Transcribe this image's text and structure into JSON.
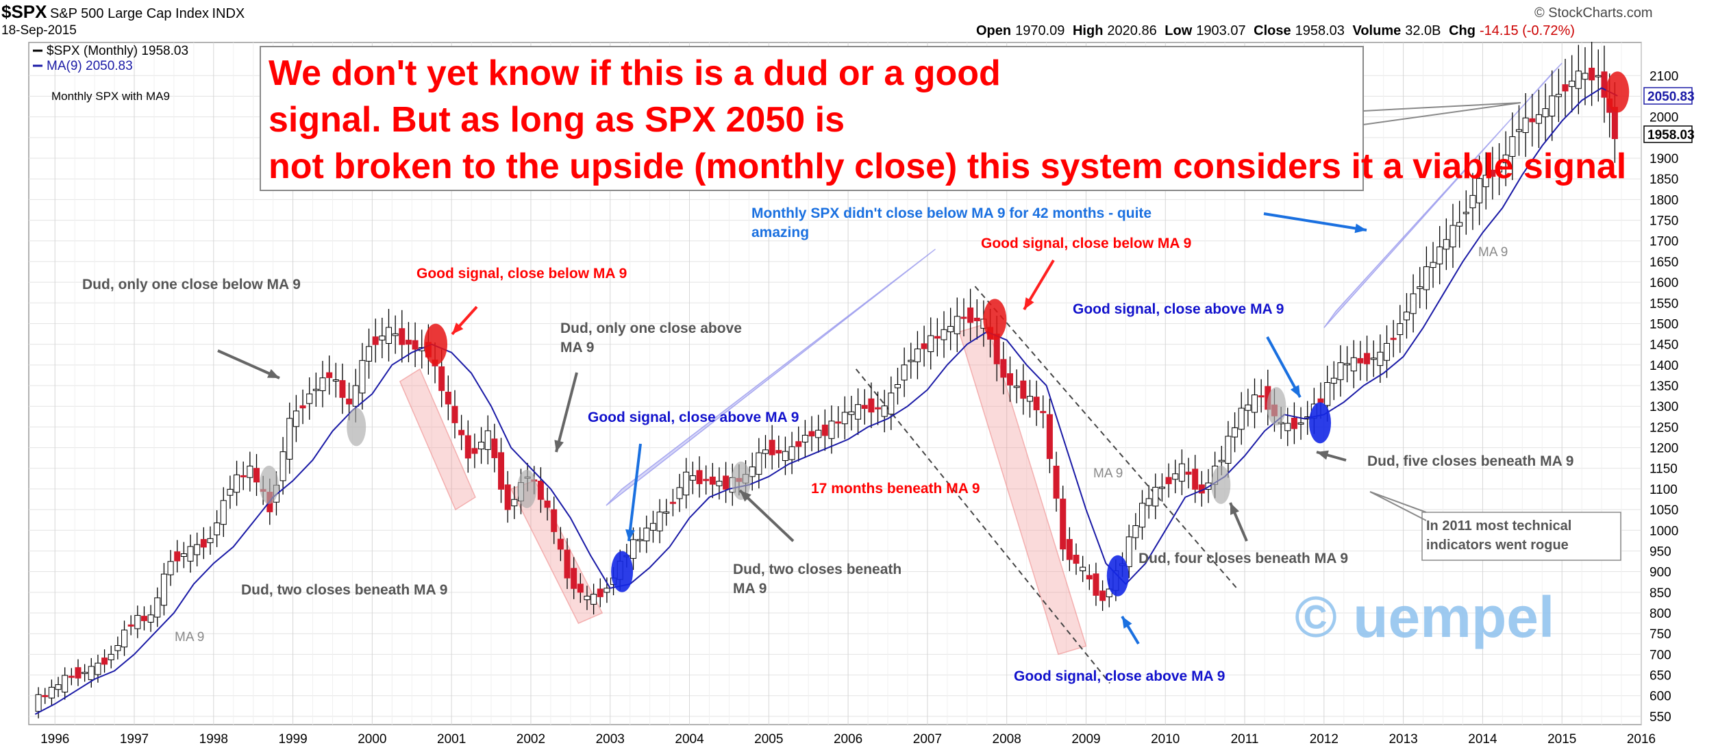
{
  "header": {
    "symbol": "$SPX",
    "name": "S&P 500 Large Cap Index",
    "exchange": "INDX",
    "date": "18-Sep-2015",
    "source": "© StockCharts.com",
    "stats": {
      "open_label": "Open",
      "open": "1970.09",
      "high_label": "High",
      "high": "2020.86",
      "low_label": "Low",
      "low": "1903.07",
      "close_label": "Close",
      "close": "1958.03",
      "volume_label": "Volume",
      "volume": "32.0B",
      "chg_label": "Chg",
      "chg": "-14.15 (-0.72%)"
    }
  },
  "chart_data": {
    "type": "line",
    "title": "Monthly SPX with MA9",
    "legend": [
      {
        "name": "$SPX (Monthly) 1958.03",
        "color": "#000000"
      },
      {
        "name": "MA(9) 2050.83",
        "color": "#1a1aa6"
      }
    ],
    "legend_placement": "top-left",
    "x_ticks": [
      "1996",
      "1997",
      "1998",
      "1999",
      "2000",
      "2001",
      "2002",
      "2003",
      "2004",
      "2005",
      "2006",
      "2007",
      "2008",
      "2009",
      "2010",
      "2011",
      "2012",
      "2013",
      "2014",
      "2015",
      "2016"
    ],
    "y_ticks": [
      550,
      600,
      650,
      700,
      750,
      800,
      850,
      900,
      950,
      1000,
      1050,
      1100,
      1150,
      1200,
      1250,
      1300,
      1350,
      1400,
      1450,
      1500,
      1550,
      1600,
      1650,
      1700,
      1750,
      1800,
      1850,
      1900,
      1950,
      2000,
      2050,
      2100
    ],
    "ylim": [
      530,
      2180
    ],
    "xlim": [
      1995.67,
      2016.0
    ],
    "grid": true,
    "price_tags": [
      {
        "label": "2050.83",
        "value": 2050.83,
        "color": "#1a1aa6"
      },
      {
        "label": "1958.03",
        "value": 1958.03,
        "color": "#000000"
      }
    ],
    "series": [
      {
        "name": "$SPX (Monthly)",
        "type": "candlestick",
        "x": [
          1995.75,
          1996.0,
          1996.25,
          1996.5,
          1996.75,
          1997.0,
          1997.25,
          1997.5,
          1997.75,
          1998.0,
          1998.25,
          1998.5,
          1998.75,
          1999.0,
          1999.25,
          1999.5,
          1999.75,
          2000.0,
          2000.25,
          2000.5,
          2000.75,
          2001.0,
          2001.25,
          2001.5,
          2001.75,
          2002.0,
          2002.25,
          2002.5,
          2002.75,
          2003.0,
          2003.25,
          2003.5,
          2003.75,
          2004.0,
          2004.25,
          2004.5,
          2004.75,
          2005.0,
          2005.25,
          2005.5,
          2005.75,
          2006.0,
          2006.25,
          2006.5,
          2006.75,
          2007.0,
          2007.25,
          2007.5,
          2007.75,
          2008.0,
          2008.25,
          2008.5,
          2008.75,
          2009.0,
          2009.25,
          2009.5,
          2009.75,
          2010.0,
          2010.25,
          2010.5,
          2010.75,
          2011.0,
          2011.25,
          2011.5,
          2011.75,
          2012.0,
          2012.25,
          2012.5,
          2012.75,
          2013.0,
          2013.25,
          2013.5,
          2013.75,
          2014.0,
          2014.25,
          2014.5,
          2014.75,
          2015.0,
          2015.25,
          2015.5,
          2015.7
        ],
        "y": [
          580,
          615,
          650,
          660,
          700,
          780,
          790,
          930,
          950,
          980,
          1110,
          1150,
          1050,
          1260,
          1330,
          1380,
          1300,
          1450,
          1480,
          1450,
          1430,
          1300,
          1180,
          1230,
          1050,
          1140,
          1050,
          890,
          830,
          860,
          950,
          1000,
          1050,
          1130,
          1120,
          1110,
          1130,
          1200,
          1180,
          1230,
          1240,
          1280,
          1300,
          1290,
          1400,
          1450,
          1480,
          1520,
          1500,
          1370,
          1330,
          1280,
          960,
          900,
          830,
          930,
          1060,
          1110,
          1150,
          1090,
          1180,
          1290,
          1330,
          1250,
          1260,
          1320,
          1400,
          1410,
          1420,
          1500,
          1600,
          1680,
          1750,
          1840,
          1880,
          1980,
          2000,
          2060,
          2100,
          2100,
          1958.03
        ]
      },
      {
        "name": "MA(9)",
        "type": "line",
        "color": "#1a1aa6",
        "x": [
          1995.75,
          1996.0,
          1996.25,
          1996.5,
          1996.75,
          1997.0,
          1997.25,
          1997.5,
          1997.75,
          1998.0,
          1998.25,
          1998.5,
          1998.75,
          1999.0,
          1999.25,
          1999.5,
          1999.75,
          2000.0,
          2000.25,
          2000.5,
          2000.75,
          2001.0,
          2001.25,
          2001.5,
          2001.75,
          2002.0,
          2002.25,
          2002.5,
          2002.75,
          2003.0,
          2003.25,
          2003.5,
          2003.75,
          2004.0,
          2004.25,
          2004.5,
          2004.75,
          2005.0,
          2005.25,
          2005.5,
          2005.75,
          2006.0,
          2006.25,
          2006.5,
          2006.75,
          2007.0,
          2007.25,
          2007.5,
          2007.75,
          2008.0,
          2008.25,
          2008.5,
          2008.75,
          2009.0,
          2009.25,
          2009.5,
          2009.75,
          2010.0,
          2010.25,
          2010.5,
          2010.75,
          2011.0,
          2011.25,
          2011.5,
          2011.75,
          2012.0,
          2012.25,
          2012.5,
          2012.75,
          2013.0,
          2013.25,
          2013.5,
          2013.75,
          2014.0,
          2014.25,
          2014.5,
          2014.75,
          2015.0,
          2015.25,
          2015.5,
          2015.7
        ],
        "y": [
          555,
          580,
          610,
          640,
          660,
          700,
          750,
          800,
          870,
          920,
          960,
          1020,
          1080,
          1120,
          1170,
          1240,
          1290,
          1330,
          1400,
          1430,
          1450,
          1430,
          1380,
          1300,
          1200,
          1150,
          1100,
          1030,
          940,
          860,
          870,
          910,
          960,
          1030,
          1080,
          1100,
          1110,
          1130,
          1160,
          1180,
          1200,
          1220,
          1250,
          1270,
          1300,
          1340,
          1400,
          1450,
          1480,
          1460,
          1400,
          1350,
          1200,
          1050,
          920,
          870,
          920,
          1000,
          1080,
          1100,
          1130,
          1180,
          1240,
          1280,
          1270,
          1280,
          1310,
          1350,
          1380,
          1420,
          1490,
          1570,
          1650,
          1720,
          1780,
          1860,
          1930,
          1990,
          2040,
          2070,
          2050.83
        ]
      }
    ],
    "annotations": [
      {
        "text": "We don't yet know if this is a dud or a good signal. But as long as SPX 2050 is not broken to the upside (monthly close) this system considers it a viable signal",
        "color": "#ff0000"
      },
      {
        "text": "Dud, only one close below MA 9",
        "color": "#555555"
      },
      {
        "text": "Good signal, close below MA 9",
        "color": "#ff0000"
      },
      {
        "text": "Dud, only one close above MA 9",
        "color": "#555555"
      },
      {
        "text": "Good signal, close above MA 9",
        "color": "#1111cc"
      },
      {
        "text": "Monthly SPX didn't close below MA 9 for 42 months - quite amazing",
        "color": "#1a70e0"
      },
      {
        "text": "Good signal, close below MA 9",
        "color": "#ff0000"
      },
      {
        "text": "Good signal, close above MA 9",
        "color": "#1111cc"
      },
      {
        "text": "17 months beneath MA 9",
        "color": "#ff0000"
      },
      {
        "text": "Dud, two closes beneath MA 9",
        "color": "#555555"
      },
      {
        "text": "Dud, two closes beneath MA 9",
        "color": "#555555"
      },
      {
        "text": "Dud, five closes beneath MA 9",
        "color": "#555555"
      },
      {
        "text": "In 2011 most technical indicators went rogue",
        "color": "#555555"
      },
      {
        "text": "Dud, four closes beneath MA 9",
        "color": "#555555"
      },
      {
        "text": "Good signal, close above MA 9",
        "color": "#1111cc"
      },
      {
        "text": "MA 9",
        "color": "#888888"
      },
      {
        "text": "MA 9",
        "color": "#888888"
      },
      {
        "text": "MA 9",
        "color": "#888888"
      },
      {
        "text": "© uempel",
        "color": "#8ec1ee"
      }
    ]
  }
}
